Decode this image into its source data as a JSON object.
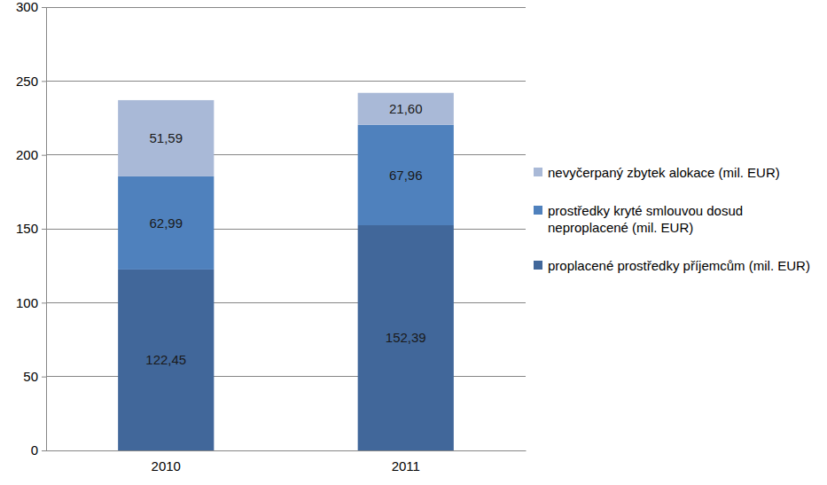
{
  "chart_data": {
    "type": "bar",
    "stacked": true,
    "data_labels": true,
    "grid": true,
    "categories": [
      "2010",
      "2011"
    ],
    "series": [
      {
        "name": "proplacené prostředky příjemcům (mil. EUR)",
        "color": "#41679a",
        "values": [
          122.45,
          152.39
        ],
        "value_labels": [
          "122,45",
          "152,39"
        ]
      },
      {
        "name": "prostředky kryté smlouvou dosud neproplacené (mil. EUR)",
        "color": "#4f81bd",
        "values": [
          62.99,
          67.96
        ],
        "value_labels": [
          "62,99",
          "67,96"
        ]
      },
      {
        "name": "nevyčerpaný zbytek alokace (mil. EUR)",
        "color": "#a9b9d7",
        "values": [
          51.59,
          21.6
        ],
        "value_labels": [
          "51,59",
          "21,60"
        ]
      }
    ],
    "ylim": [
      0,
      300
    ],
    "yticks": [
      0,
      50,
      100,
      150,
      200,
      250,
      300
    ]
  }
}
